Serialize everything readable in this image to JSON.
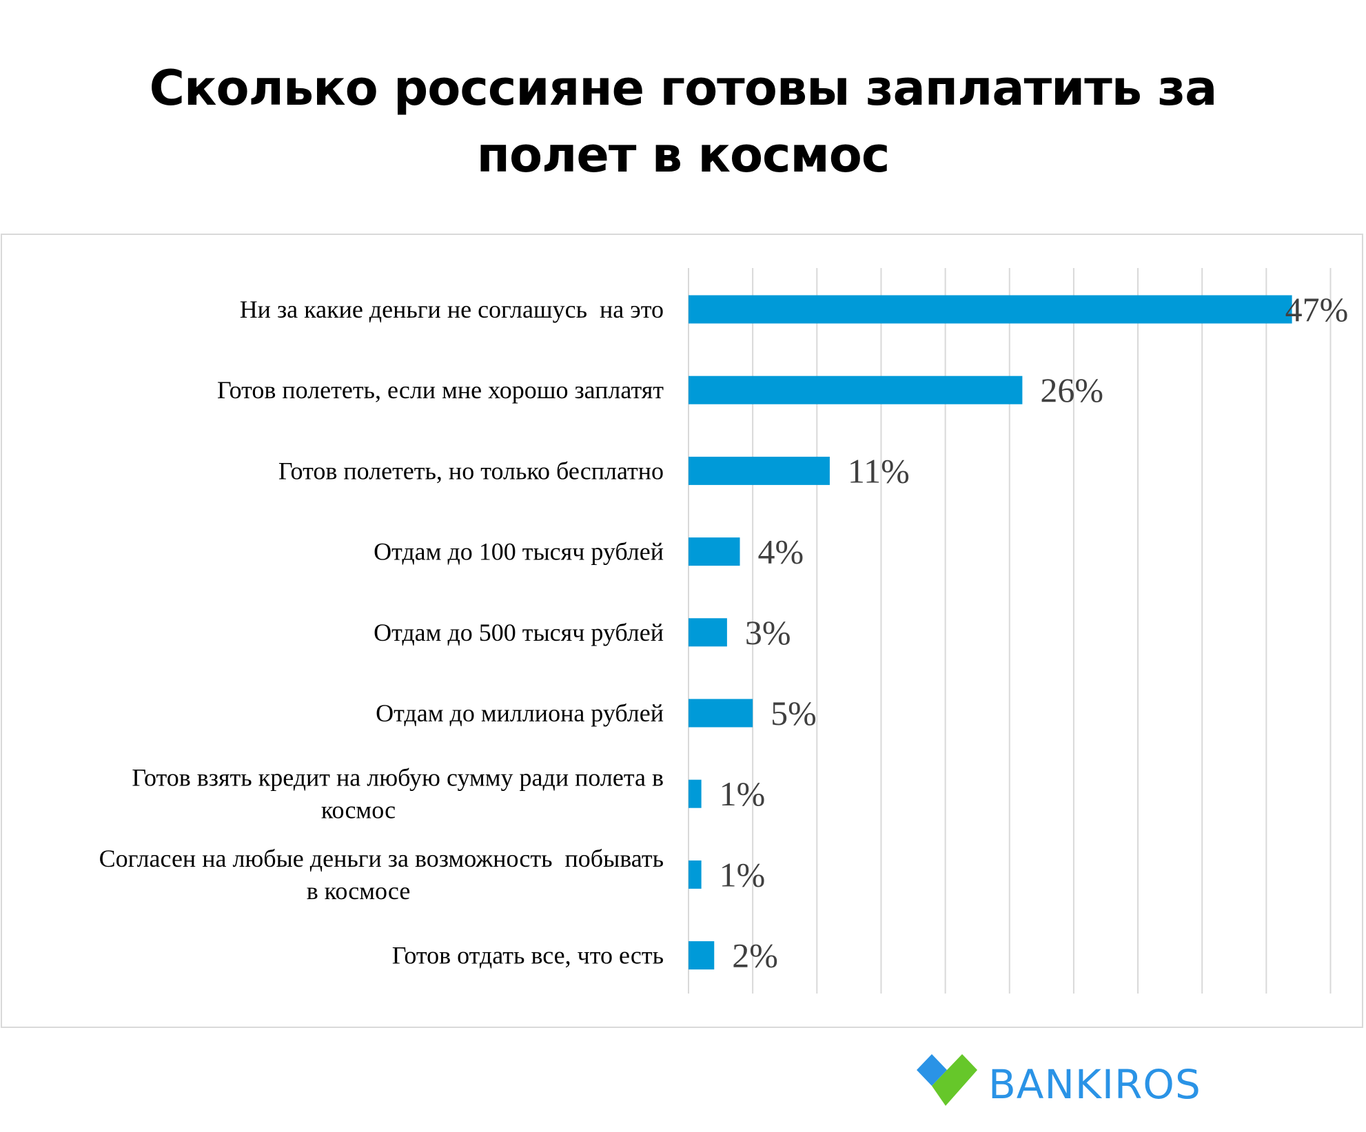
{
  "chart_data": {
    "type": "bar",
    "orientation": "horizontal",
    "title": "Сколько россияне готовы заплатить за полет в космос",
    "title_lines": [
      "Сколько россияне готовы заплатить за",
      "полет в космос"
    ],
    "categories": [
      [
        "Ни за какие деньги не соглашусь  на это"
      ],
      [
        "Готов полететь, если мне хорошо заплатят"
      ],
      [
        "Готов полететь, но только бесплатно"
      ],
      [
        "Отдам до 100 тысяч рублей"
      ],
      [
        "Отдам до 500 тысяч рублей"
      ],
      [
        "Отдам до миллиона рублей"
      ],
      [
        "Готов взять кредит на любую сумму ради полета в",
        "космос"
      ],
      [
        "Согласен на любые деньги за возможность  побывать",
        "в космосе"
      ],
      [
        "Готов отдать все, что есть"
      ]
    ],
    "values": [
      47,
      26,
      11,
      4,
      3,
      5,
      1,
      1,
      2
    ],
    "value_labels": [
      "47%",
      "26%",
      "11%",
      "4%",
      "3%",
      "5%",
      "1%",
      "1%",
      "2%"
    ],
    "xlim": [
      0,
      50
    ],
    "grid_step": 5,
    "grid": true,
    "xlabel": "",
    "ylabel": "",
    "bar_color": "#009ad8"
  },
  "logo": {
    "text": "BANKIROS",
    "blue": "#2a93e6",
    "green": "#66c72a"
  }
}
